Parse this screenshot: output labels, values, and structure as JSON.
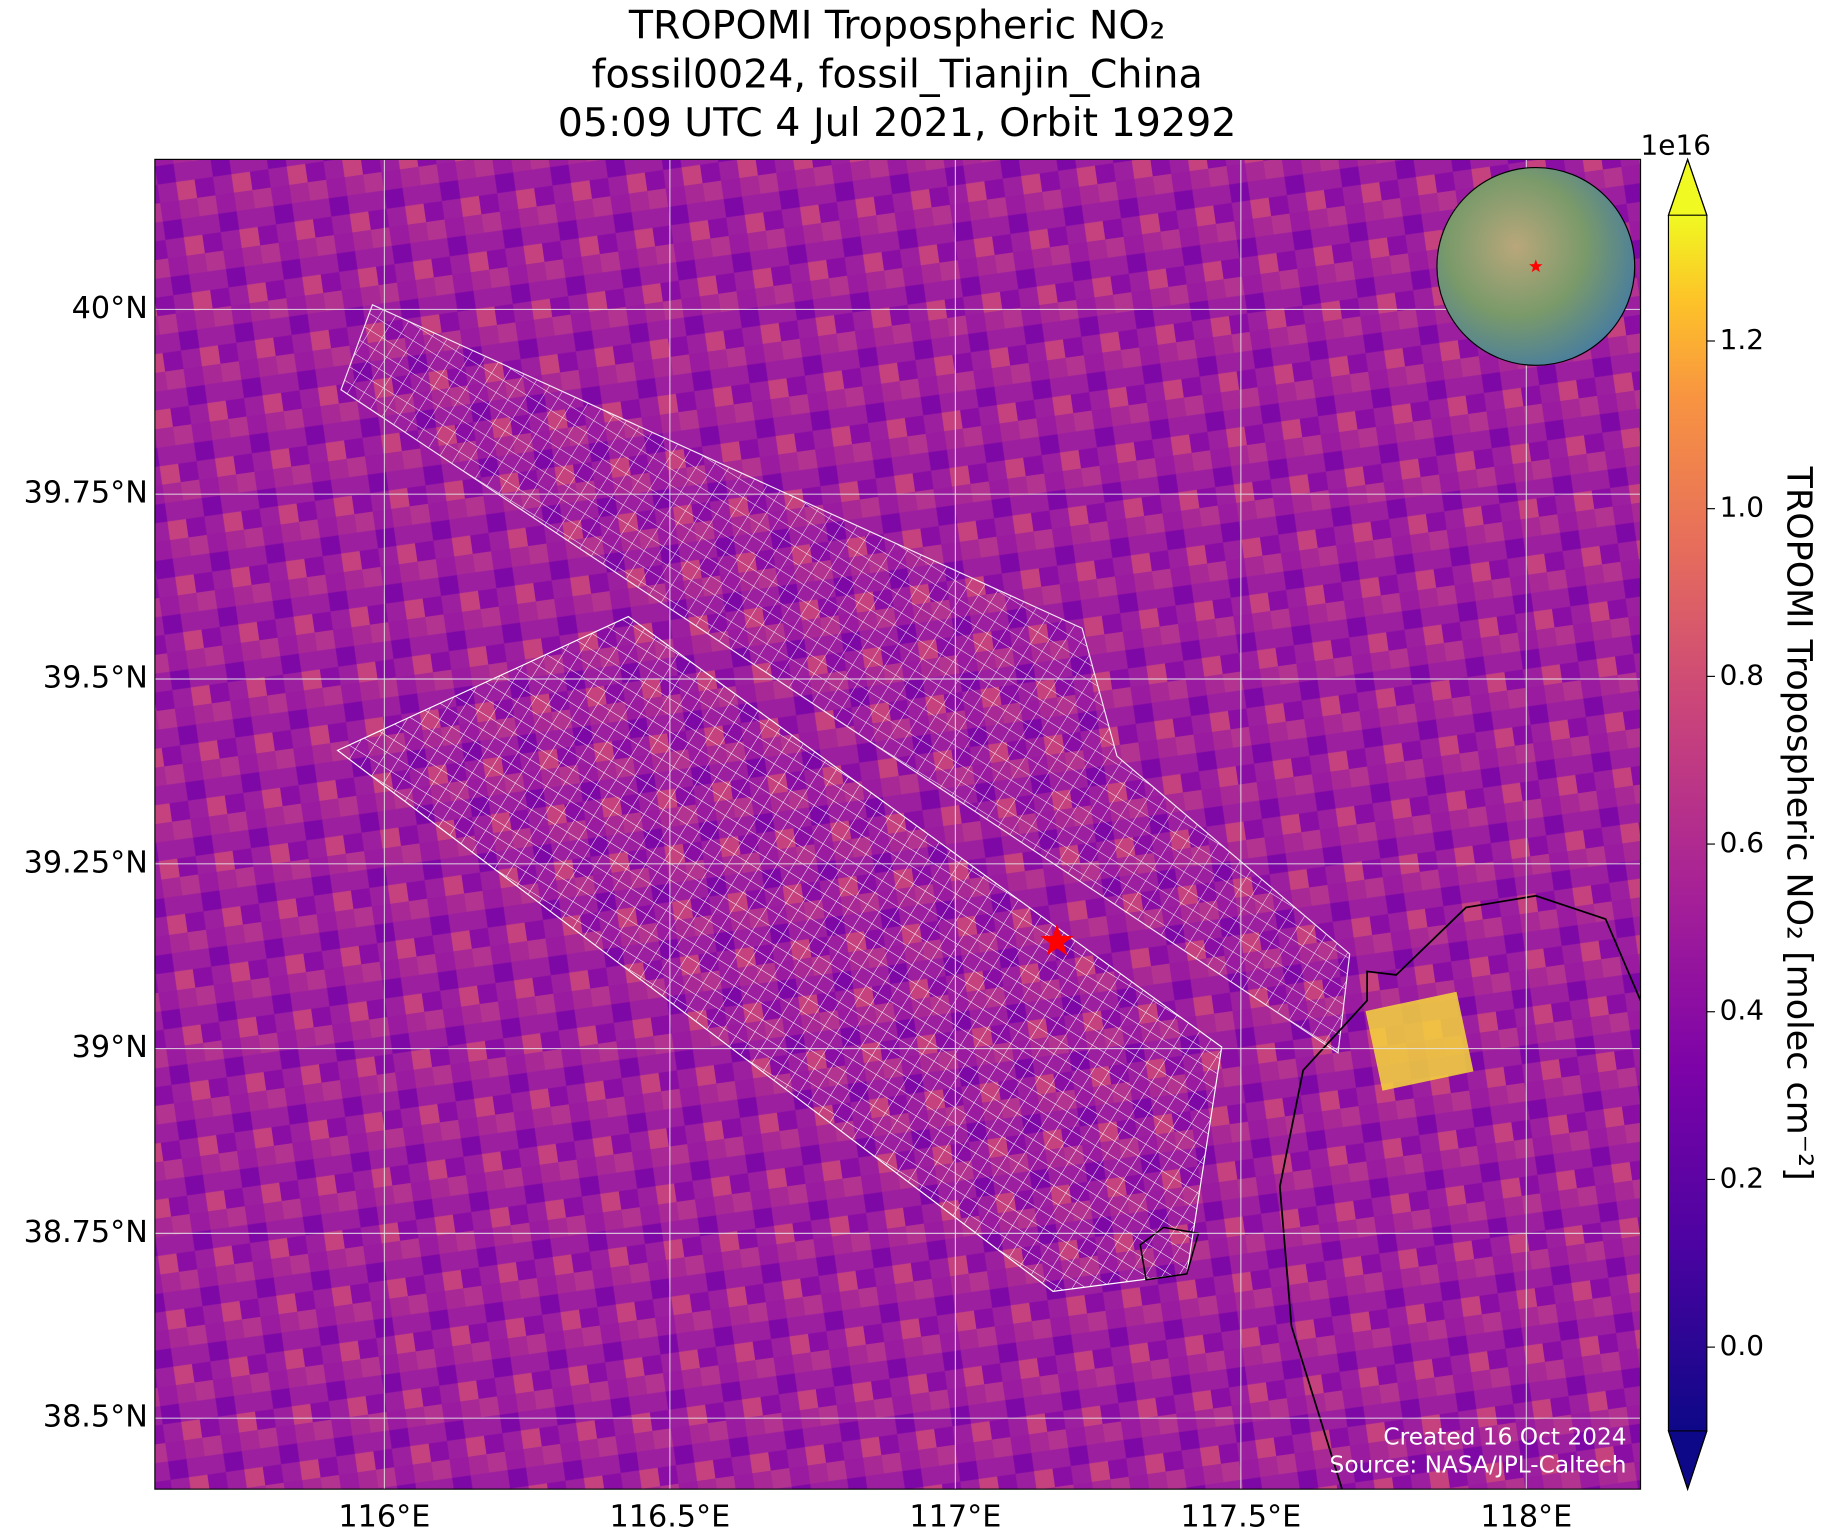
{
  "chart_data": {
    "type": "map",
    "title": [
      "TROPOMI Tropospheric NO₂",
      "fossil0024, fossil_Tianjin_China",
      "05:09 UTC 4 Jul 2021, Orbit 19292"
    ],
    "xlim": [
      115.598,
      118.2
    ],
    "ylim": [
      38.404,
      40.203
    ],
    "xticks": [
      {
        "value": 116,
        "label": "116°E"
      },
      {
        "value": 116.5,
        "label": "116.5°E"
      },
      {
        "value": 117,
        "label": "117°E"
      },
      {
        "value": 117.5,
        "label": "117.5°E"
      },
      {
        "value": 118,
        "label": "118°E"
      }
    ],
    "yticks": [
      {
        "value": 38.5,
        "label": "38.5°N"
      },
      {
        "value": 38.75,
        "label": "38.75°N"
      },
      {
        "value": 39,
        "label": "39°N"
      },
      {
        "value": 39.25,
        "label": "39.25°N"
      },
      {
        "value": 39.5,
        "label": "39.5°N"
      },
      {
        "value": 39.75,
        "label": "39.75°N"
      },
      {
        "value": 40,
        "label": "40°N"
      }
    ],
    "grid": true,
    "site": {
      "lon": 117.178,
      "lat": 39.145,
      "color": "#ff0000"
    },
    "colorbar": {
      "label": "TROPOMI Tropospheric NO₂ [molec cm⁻²]",
      "offset_label": "1e16",
      "clim": [
        -0.1,
        1.35
      ],
      "ticks": [
        {
          "value": 0,
          "label": "0.0"
        },
        0.2,
        0.4,
        0.6,
        0.8,
        {
          "value": 1,
          "label": "1.0"
        },
        1.2
      ],
      "colormap": "plasma"
    },
    "footer": [
      "Created 16 Oct 2024",
      "Source: NASA/JPL-Caltech"
    ]
  }
}
